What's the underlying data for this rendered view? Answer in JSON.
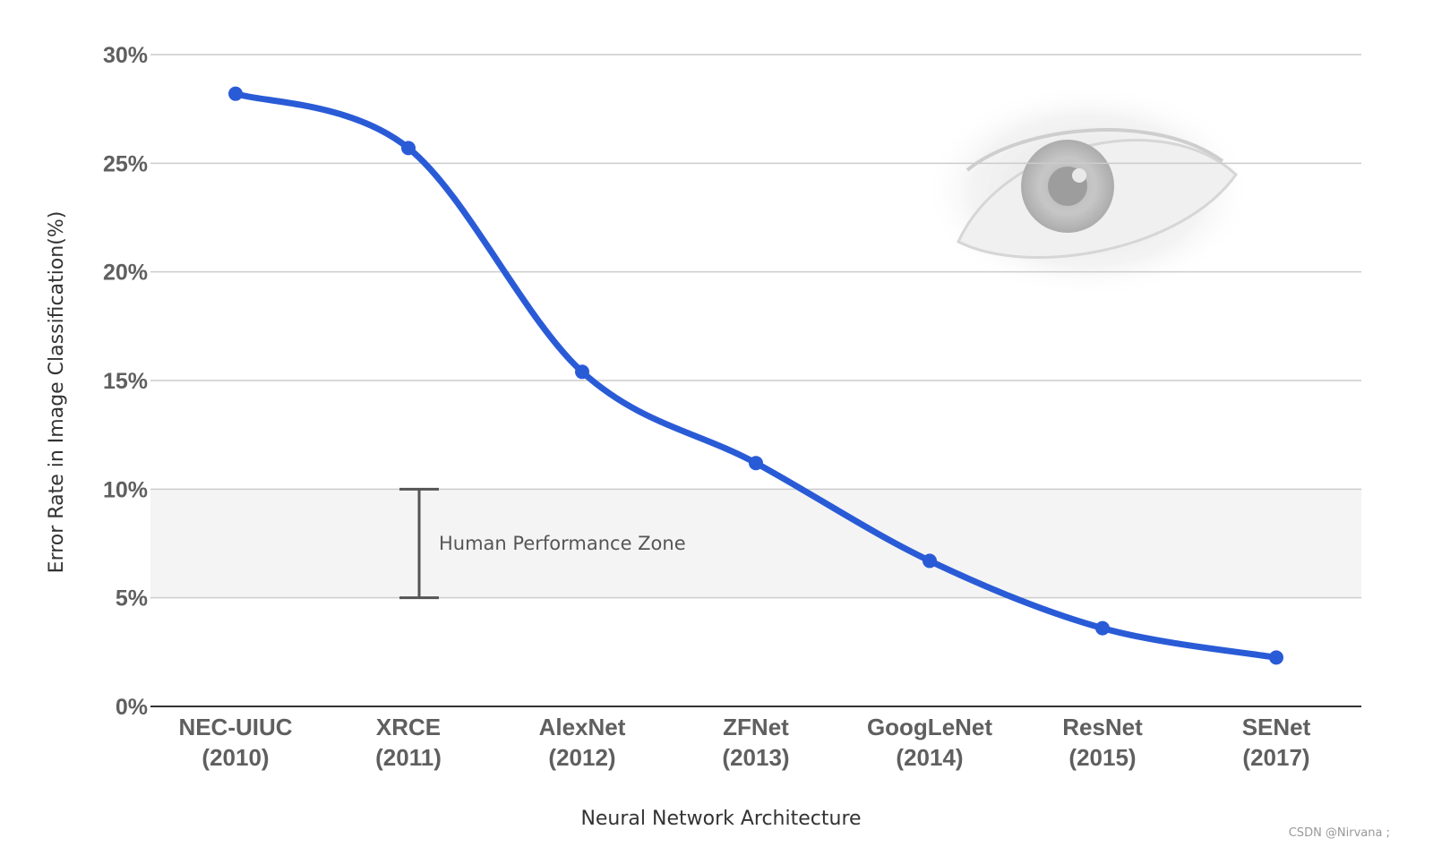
{
  "chart_data": {
    "type": "line",
    "categories": [
      [
        "NEC-UIUC",
        "(2010)"
      ],
      [
        "XRCE",
        "(2011)"
      ],
      [
        "AlexNet",
        "(2012)"
      ],
      [
        "ZFNet",
        "(2013)"
      ],
      [
        "GoogLeNet",
        "(2014)"
      ],
      [
        "ResNet",
        "(2015)"
      ],
      [
        "SENet",
        "(2017)"
      ]
    ],
    "series": [
      {
        "values": [
          28.2,
          25.7,
          15.4,
          11.2,
          6.7,
          3.6,
          2.25
        ]
      }
    ],
    "xlabel": "Neural Network Architecture",
    "ylabel": "Error Rate in Image Classification(%)",
    "ylim": [
      0,
      30
    ],
    "yticks": [
      0,
      5,
      10,
      15,
      20,
      25,
      30
    ],
    "ytick_labels": [
      "0%",
      "5%",
      "10%",
      "15%",
      "20%",
      "25%",
      "30%"
    ],
    "grid": true,
    "human_zone": {
      "label": "Human Performance Zone",
      "range": [
        5,
        10
      ]
    },
    "colors": {
      "line": "#2a5bd7",
      "grid": "#cccccc",
      "zone": "#f4f4f4",
      "bracket": "#555555"
    },
    "decoration": "eye-image"
  },
  "watermark": "CSDN @Nirvana ;"
}
